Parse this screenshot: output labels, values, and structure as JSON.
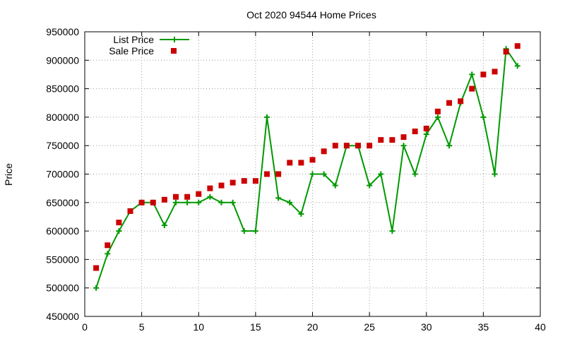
{
  "chart_data": {
    "type": "line",
    "title": "Oct 2020 94544 Home Prices",
    "xlabel": "",
    "ylabel": "Price",
    "xlim": [
      0,
      40
    ],
    "ylim": [
      450000,
      950000
    ],
    "xticks": [
      0,
      5,
      10,
      15,
      20,
      25,
      30,
      35,
      40
    ],
    "yticks": [
      450000,
      500000,
      550000,
      600000,
      650000,
      700000,
      750000,
      800000,
      850000,
      900000,
      950000
    ],
    "grid": true,
    "legend_position": "top-left",
    "x": [
      1,
      2,
      3,
      4,
      5,
      6,
      7,
      8,
      9,
      10,
      11,
      12,
      13,
      14,
      15,
      16,
      17,
      18,
      19,
      20,
      21,
      22,
      23,
      24,
      25,
      26,
      27,
      28,
      29,
      30,
      31,
      32,
      33,
      34,
      35,
      36,
      37,
      38
    ],
    "series": [
      {
        "name": "List Price",
        "style": "linespoints",
        "color": "#009900",
        "values": [
          500000,
          560000,
          600000,
          635000,
          650000,
          650000,
          610000,
          650000,
          650000,
          650000,
          660000,
          650000,
          650000,
          600000,
          600000,
          800000,
          658000,
          650000,
          630000,
          700000,
          700000,
          680000,
          750000,
          750000,
          680000,
          700000,
          600000,
          750000,
          700000,
          770000,
          800000,
          750000,
          825000,
          875000,
          800000,
          700000,
          920000,
          890000
        ]
      },
      {
        "name": "Sale Price",
        "style": "points",
        "color": "#cc0000",
        "values": [
          535000,
          575000,
          615000,
          635000,
          650000,
          650000,
          655000,
          660000,
          660000,
          665000,
          675000,
          680000,
          685000,
          688000,
          688000,
          700000,
          700000,
          720000,
          720000,
          725000,
          740000,
          750000,
          750000,
          750000,
          750000,
          760000,
          760000,
          765000,
          775000,
          780000,
          810000,
          825000,
          828000,
          850000,
          875000,
          880000,
          915000,
          925000
        ]
      }
    ]
  }
}
